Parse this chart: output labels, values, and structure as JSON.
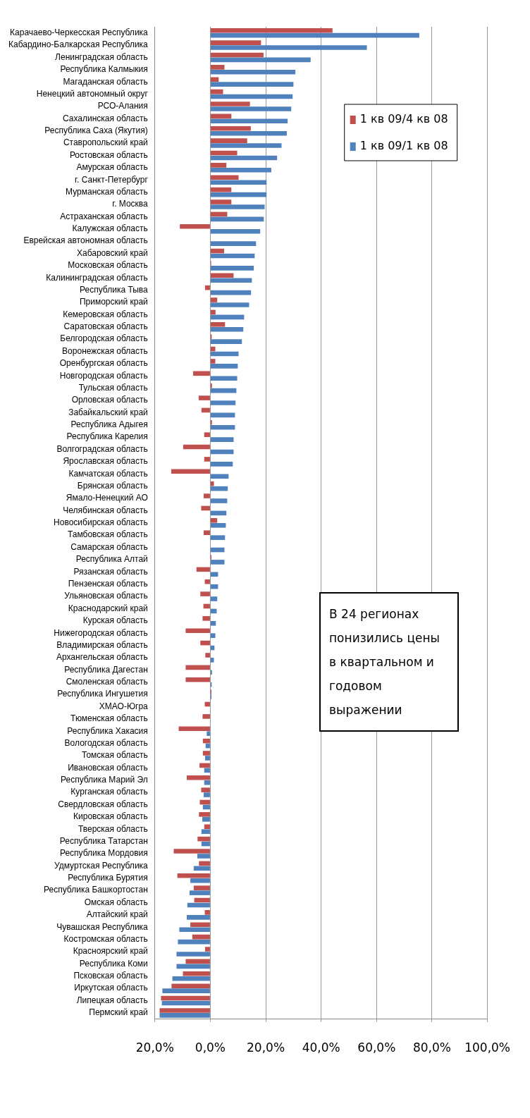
{
  "chart_data": {
    "type": "bar",
    "orientation": "horizontal",
    "categories": [
      "Карачаево-Черкесская Республика",
      "Кабардино-Балкарская Республика",
      "Ленинградская область",
      "Республика Калмыкия",
      "Магаданская область",
      "Ненецкий автономный округ",
      "РСО-Алания",
      "Сахалинская область",
      "Республика Саха (Якутия)",
      "Ставропольский край",
      "Ростовская область",
      "Амурская область",
      "г. Санкт-Петербург",
      "Мурманская область",
      "г. Москва",
      "Астраханская область",
      "Калужская область",
      "Еврейская автономная область",
      "Хабаровский край",
      "Московская область",
      "Калининградская область",
      "Республика Тыва",
      "Приморский край",
      "Кемеровская область",
      "Саратовская область",
      "Белгородская область",
      "Воронежская область",
      "Оренбургская область",
      "Новгородская область",
      "Тульская область",
      "Орловская область",
      "Забайкальский край",
      "Республика Адыгея",
      "Республика Карелия",
      "Волгоградская область",
      "Ярославская область",
      "Камчатская область",
      "Брянская область",
      "Ямало-Ненецкий АО",
      "Челябинская область",
      "Новосибирская область",
      "Тамбовская область",
      "Самарская область",
      "Республика Алтай",
      "Рязанская область",
      "Пензенская область",
      "Ульяновская область",
      "Краснодарский край",
      "Курская область",
      "Нижегородская область",
      "Владимирская область",
      "Архангельская область",
      "Республика Дагестан",
      "Смоленская область",
      "Республика Ингушетия",
      "ХМАО-Югра",
      "Тюменская область",
      "Республика Хакасия",
      "Вологодская область",
      "Томская область",
      "Ивановская область",
      "Республика Марий Эл",
      "Курганская область",
      "Свердловская область",
      "Кировская область",
      "Тверская область",
      "Республика Татарстан",
      "Республика Мордовия",
      "Удмуртская Республика",
      "Республика Бурятия",
      "Республика Башкортостан",
      "Омская область",
      "Алтайский край",
      "Чувашская Республика",
      "Костромская область",
      "Красноярский край",
      "Республика Коми",
      "Псковская область",
      "Иркутская область",
      "Липецкая область",
      "Пермский край"
    ],
    "series": [
      {
        "name": "1 кв 09/4 кв 08",
        "color": "#c0504d",
        "values": [
          44.1,
          18.3,
          19.2,
          5.1,
          3.0,
          4.6,
          14.3,
          7.6,
          14.6,
          13.3,
          9.7,
          5.8,
          10.2,
          7.6,
          7.6,
          6.1,
          -11.0,
          0,
          5.0,
          0.3,
          8.4,
          -1.9,
          2.5,
          1.9,
          5.3,
          0.5,
          1.8,
          1.8,
          -6.2,
          0.6,
          -4.2,
          -3.2,
          0.6,
          -2.2,
          -9.8,
          -2.2,
          -14.1,
          1.3,
          -2.4,
          -3.3,
          2.5,
          -2.4,
          0,
          0.4,
          -5.0,
          -2.0,
          -3.6,
          -2.5,
          -2.8,
          -8.9,
          -3.6,
          -1.8,
          -8.9,
          -8.9,
          0.4,
          -2.0,
          -2.8,
          -11.4,
          -2.7,
          -2.7,
          -3.9,
          -8.5,
          -3.3,
          -3.8,
          -4.1,
          -2.2,
          -4.6,
          -13.2,
          -4.1,
          -11.9,
          -6.0,
          -5.8,
          -2.0,
          -7.2,
          -6.5,
          -1.9,
          -8.9,
          -9.9,
          -14.0,
          -17.8,
          -18.3
        ]
      },
      {
        "name": "1 кв 09/1 кв 08",
        "color": "#4f81bd",
        "values": [
          75.4,
          56.5,
          36.2,
          30.7,
          30.0,
          29.7,
          29.2,
          27.9,
          27.6,
          25.7,
          24.1,
          22.0,
          20.3,
          20.3,
          19.6,
          19.3,
          18.0,
          16.5,
          16.0,
          15.7,
          15.0,
          14.7,
          14.0,
          12.2,
          11.9,
          11.4,
          10.2,
          9.9,
          9.7,
          9.4,
          9.1,
          8.9,
          8.9,
          8.4,
          8.4,
          8.1,
          6.6,
          6.3,
          6.1,
          5.8,
          5.6,
          5.3,
          5.1,
          5.1,
          2.8,
          2.8,
          2.5,
          2.3,
          2.0,
          1.8,
          1.5,
          1.3,
          0.6,
          0.5,
          0.4,
          null,
          null,
          -1.3,
          -1.7,
          -1.9,
          -2.2,
          -2.2,
          -2.4,
          -2.7,
          -2.9,
          -3.2,
          -3.2,
          -4.7,
          -6.0,
          -7.2,
          -7.5,
          -8.3,
          -8.5,
          -11.2,
          -11.7,
          -12.2,
          -12.2,
          -13.7,
          -17.3,
          -17.5,
          -18.3
        ]
      }
    ],
    "xlim": [
      -20,
      100
    ],
    "xticks": [
      {
        "value": -20,
        "label": "20,0%"
      },
      {
        "value": 0,
        "label": "0,0%"
      },
      {
        "value": 20,
        "label": "20,0%"
      },
      {
        "value": 40,
        "label": "40,0%"
      },
      {
        "value": 60,
        "label": "60,0%"
      },
      {
        "value": 80,
        "label": "80,0%"
      },
      {
        "value": 100,
        "label": "100,0%"
      }
    ],
    "grid": "x",
    "legend": "top right",
    "annotations": [
      "В 24 регионах понизились цены в квартальном и годовом выражении"
    ]
  }
}
